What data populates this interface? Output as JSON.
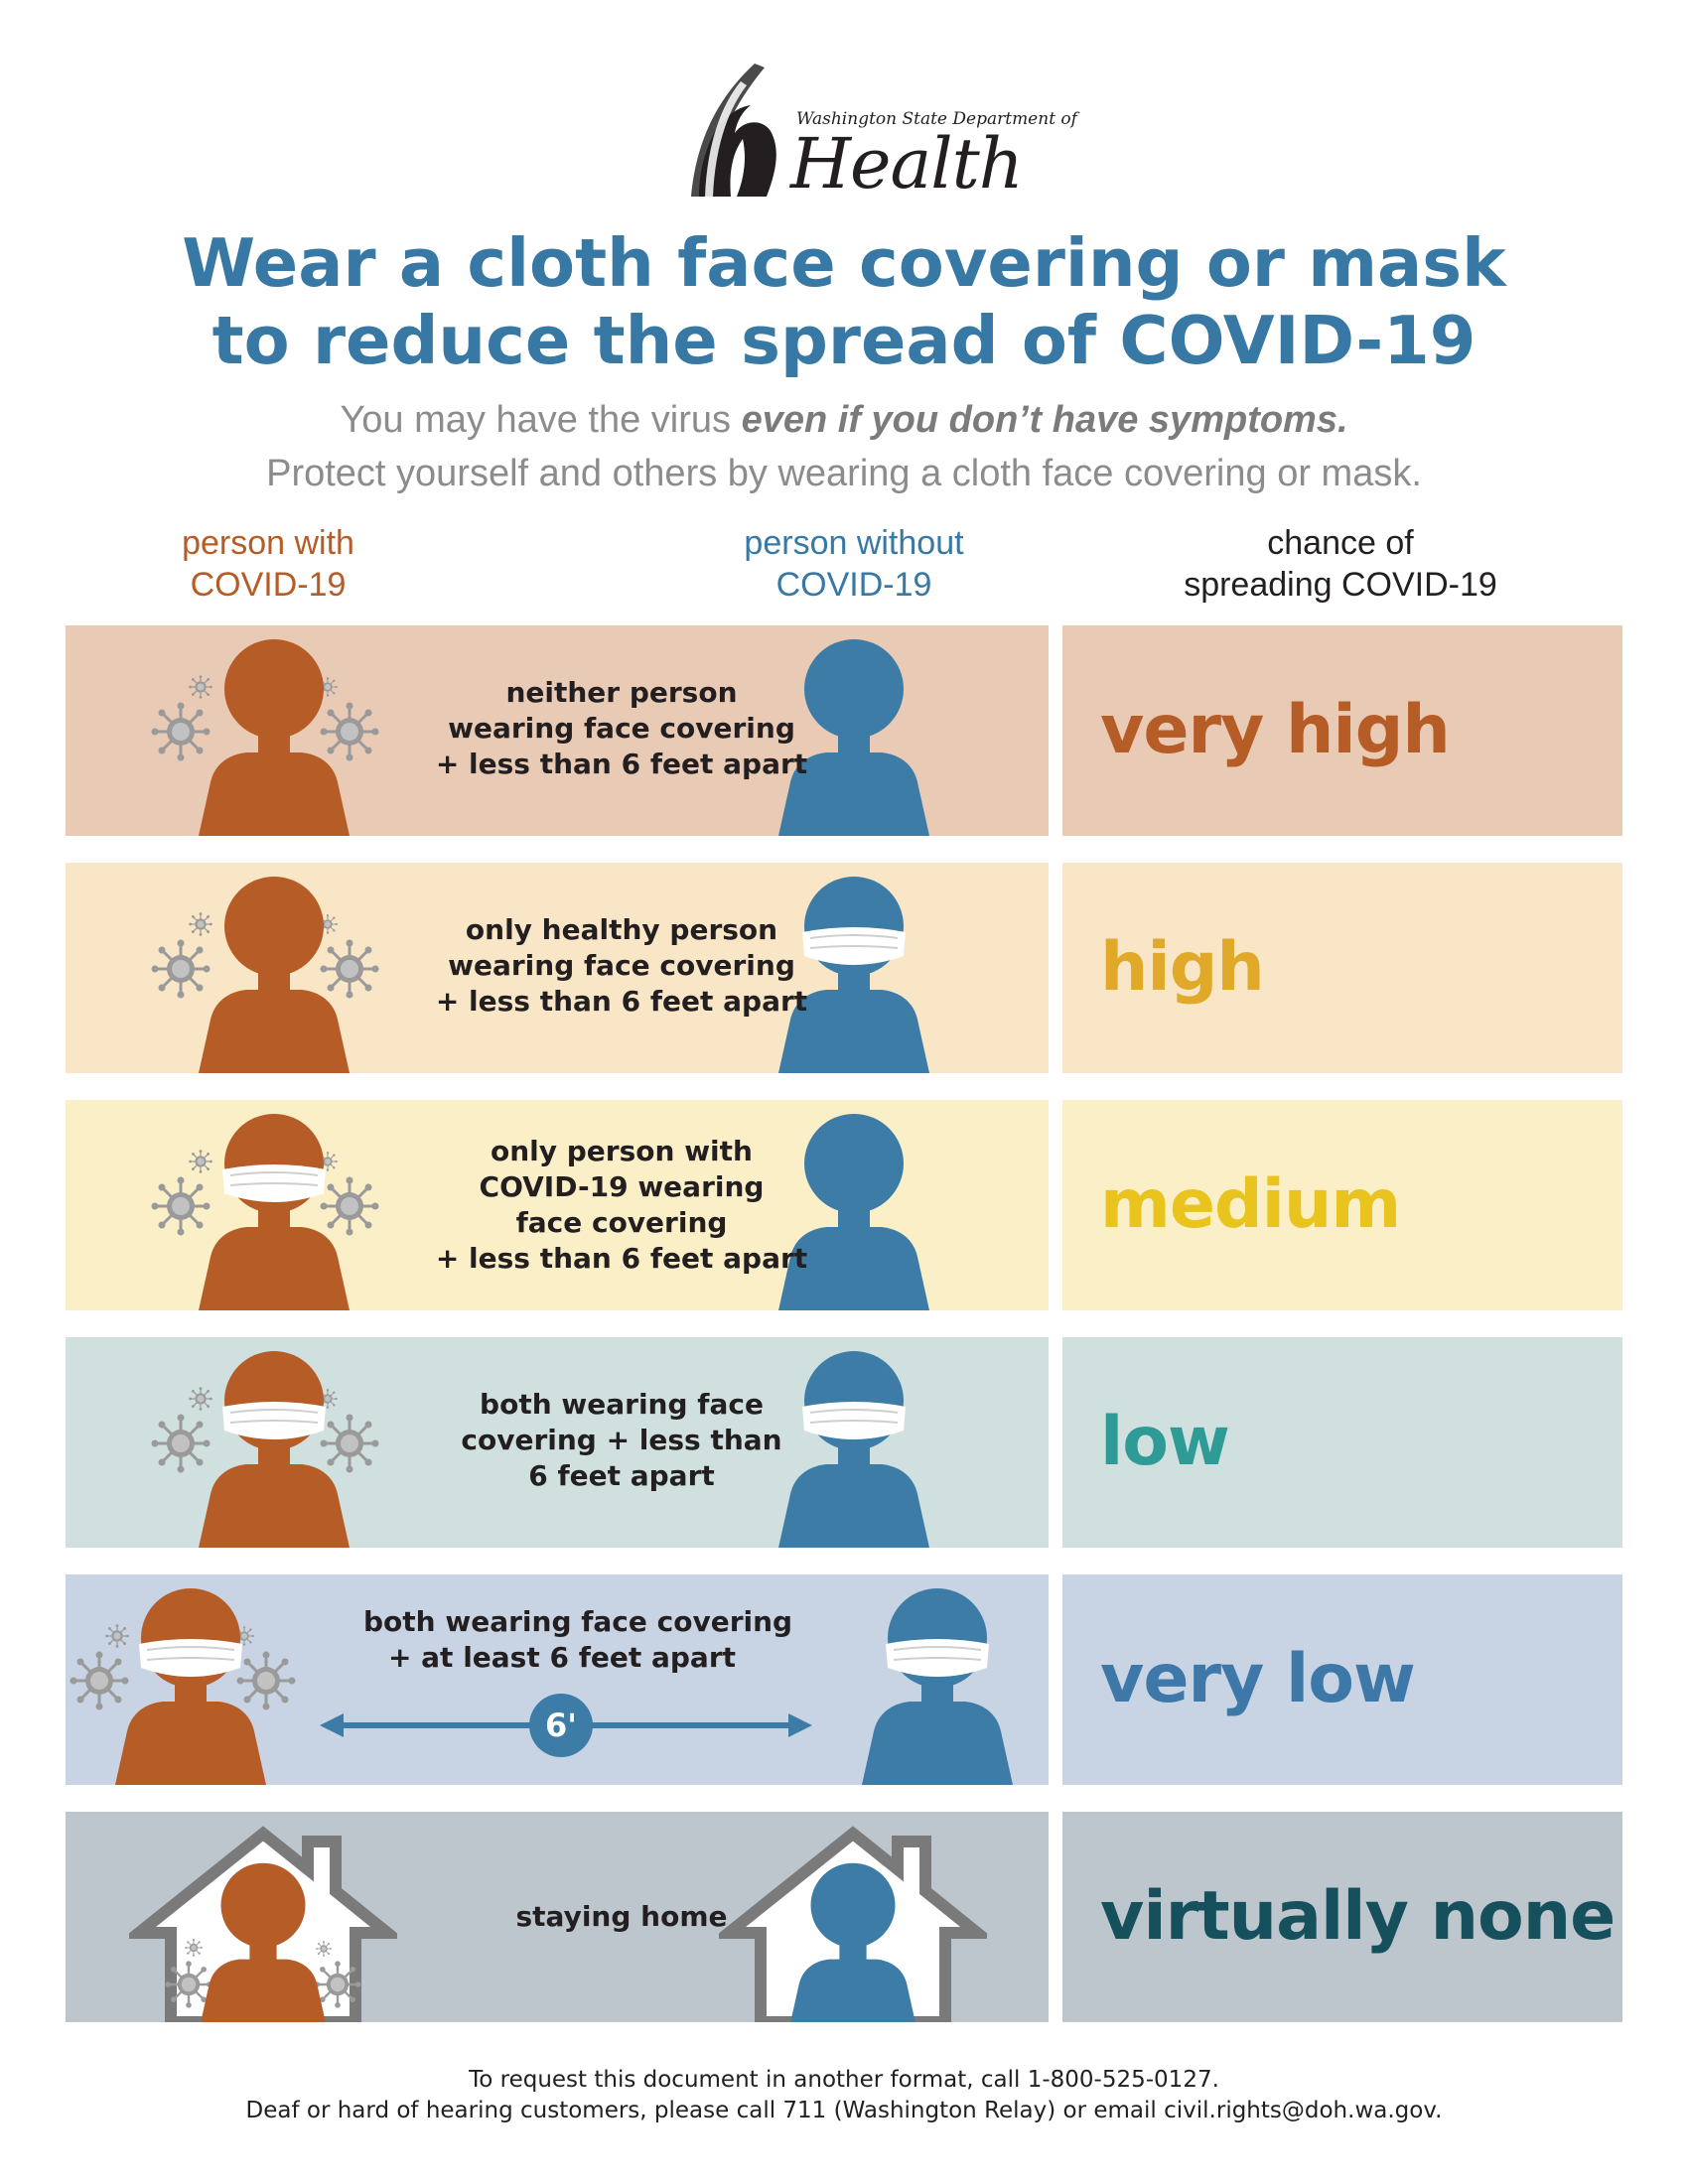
{
  "colors": {
    "title_blue": "#3878a4",
    "covid_orange": "#b65c27",
    "healthy_blue": "#3c7ca7",
    "subtitle_gray": "#8c8c8c"
  },
  "logo": {
    "org_line": "Washington State Department of",
    "name": "Health"
  },
  "title": {
    "line1": "Wear a cloth face covering or mask",
    "line2": "to reduce the spread of COVID-19"
  },
  "subtitle": {
    "line1_pre": "You may have the virus ",
    "line1_emphasis": "even if you don’t have symptoms.",
    "line2": "Protect yourself and others by wearing a cloth face covering or mask."
  },
  "columns": {
    "with_covid": {
      "line1": "person with",
      "line2": "COVID-19"
    },
    "without_covid": {
      "line1": "person without",
      "line2": "COVID-19"
    },
    "chance": {
      "line1": "chance of",
      "line2": "spreading COVID-19"
    }
  },
  "rows": [
    {
      "desc": [
        "neither person",
        "wearing face covering",
        "+ less than 6 feet apart"
      ],
      "level": "very high",
      "bg_left": "#e9cab5",
      "bg_right": "#e9cab5",
      "level_color": "#b65c27"
    },
    {
      "desc": [
        "only healthy person",
        "wearing face covering",
        "+ less than 6 feet apart"
      ],
      "level": "high",
      "bg_left": "#f8e6c6",
      "bg_right": "#f8e6c6",
      "level_color": "#e0a92a"
    },
    {
      "desc": [
        "only person with",
        "COVID-19 wearing",
        "face covering",
        "+ less than 6 feet apart"
      ],
      "level": "medium",
      "bg_left": "#fbefc8",
      "bg_right": "#fbefc8",
      "level_color": "#e9c41e"
    },
    {
      "desc": [
        "both wearing face",
        "covering + less than",
        "6 feet apart"
      ],
      "level": "low",
      "bg_left": "#cfe0df",
      "bg_right": "#cfe0df",
      "level_color": "#2e9b96"
    },
    {
      "desc": [
        "both wearing face covering",
        "+ at least 6 feet apart"
      ],
      "level": "very low",
      "distance_label": "6'",
      "bg_left": "#c8d4e3",
      "bg_right": "#c8d4e3",
      "level_color": "#3d78a8"
    },
    {
      "desc": [
        "staying home"
      ],
      "level": "virtually none",
      "bg_left": "#bcc6cc",
      "bg_right": "#bcc6cc",
      "level_color": "#15505c"
    }
  ],
  "footer": {
    "line1": "To request this document in another format, call 1-800-525-0127.",
    "line2": "Deaf or hard of hearing customers, please call 711 (Washington Relay) or email civil.rights@doh.wa.gov."
  }
}
